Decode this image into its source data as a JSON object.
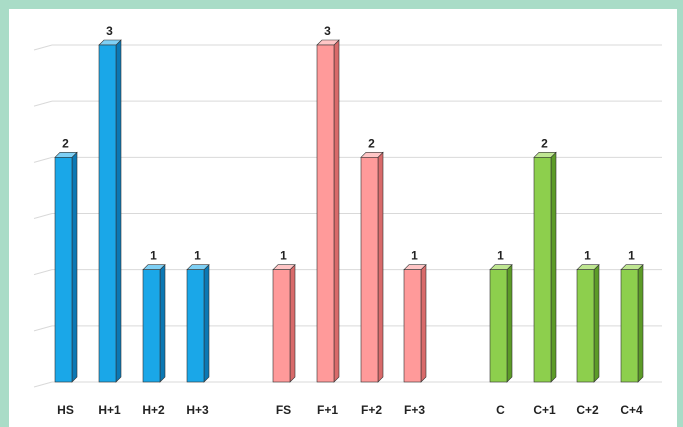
{
  "chart_data": {
    "type": "bar",
    "title": "",
    "xlabel": "",
    "ylabel": "",
    "ylim": [
      0,
      3
    ],
    "grid": true,
    "legend": "none",
    "groups": [
      {
        "color": "#1aa7e8",
        "side_color": "#0b78b4",
        "top_color": "#7fd0f5",
        "categories": [
          "HS",
          "H+1",
          "H+2",
          "H+3"
        ],
        "values": [
          2,
          3,
          1,
          1
        ]
      },
      {
        "color": "#ff9a9a",
        "side_color": "#d86a6a",
        "top_color": "#ffc6c6",
        "categories": [
          "FS",
          "F+1",
          "F+2",
          "F+3"
        ],
        "values": [
          1,
          3,
          2,
          1
        ]
      },
      {
        "color": "#8dcf4d",
        "side_color": "#5c9b27",
        "top_color": "#bfe692",
        "categories": [
          "C",
          "C+1",
          "C+2",
          "C+4"
        ],
        "values": [
          1,
          2,
          1,
          1
        ]
      }
    ]
  }
}
